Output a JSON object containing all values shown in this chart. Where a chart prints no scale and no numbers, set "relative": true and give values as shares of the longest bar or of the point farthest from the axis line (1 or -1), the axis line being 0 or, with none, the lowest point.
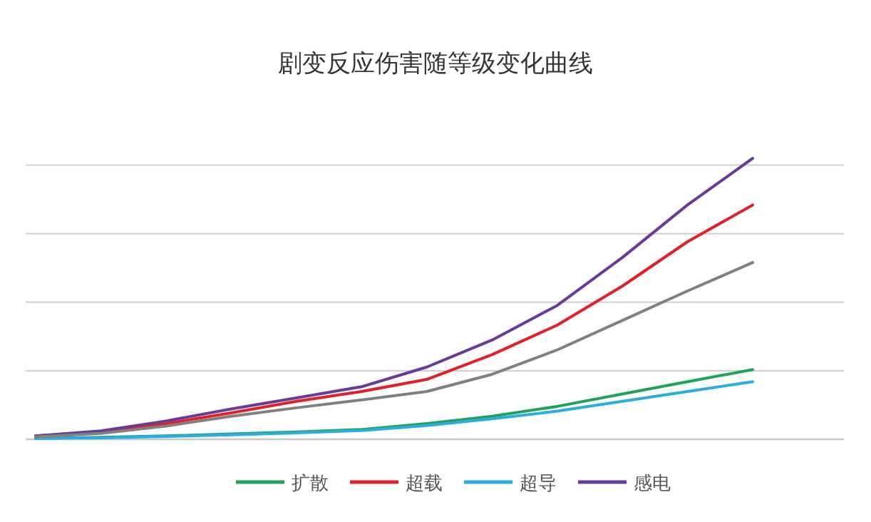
{
  "chart_data": {
    "type": "line",
    "title": "剧变反应伤害随等级变化曲线",
    "relative": true,
    "grid": "y",
    "legend": "bottom",
    "marker": "none",
    "line_style": "solid",
    "categories": [
      null,
      null,
      null,
      null,
      null,
      null,
      null,
      null,
      null,
      null,
      null,
      null
    ],
    "series": [
      {
        "name": "扩散",
        "color": "#1fa35a",
        "values": [
          0.003,
          0.007,
          0.012,
          0.019,
          0.026,
          0.035,
          0.056,
          0.082,
          0.117,
          0.161,
          0.205,
          0.248
        ]
      },
      {
        "name": "超载",
        "color": "#e0202a",
        "values": [
          0.012,
          0.026,
          0.056,
          0.094,
          0.135,
          0.17,
          0.213,
          0.301,
          0.406,
          0.545,
          0.703,
          0.834
        ]
      },
      {
        "name": "超导",
        "color": "#2aaee0",
        "values": [
          0.003,
          0.005,
          0.01,
          0.016,
          0.023,
          0.031,
          0.049,
          0.073,
          0.1,
          0.135,
          0.17,
          0.205
        ]
      },
      {
        "name": "感电",
        "color": "#6a3a9a",
        "values": [
          0.012,
          0.03,
          0.065,
          0.108,
          0.147,
          0.187,
          0.257,
          0.353,
          0.476,
          0.647,
          0.834,
          1
        ]
      },
      {
        "color": "#808080",
        "values": [
          0.009,
          0.021,
          0.047,
          0.082,
          0.112,
          0.14,
          0.17,
          0.231,
          0.318,
          0.423,
          0.528,
          0.629
        ]
      }
    ]
  }
}
